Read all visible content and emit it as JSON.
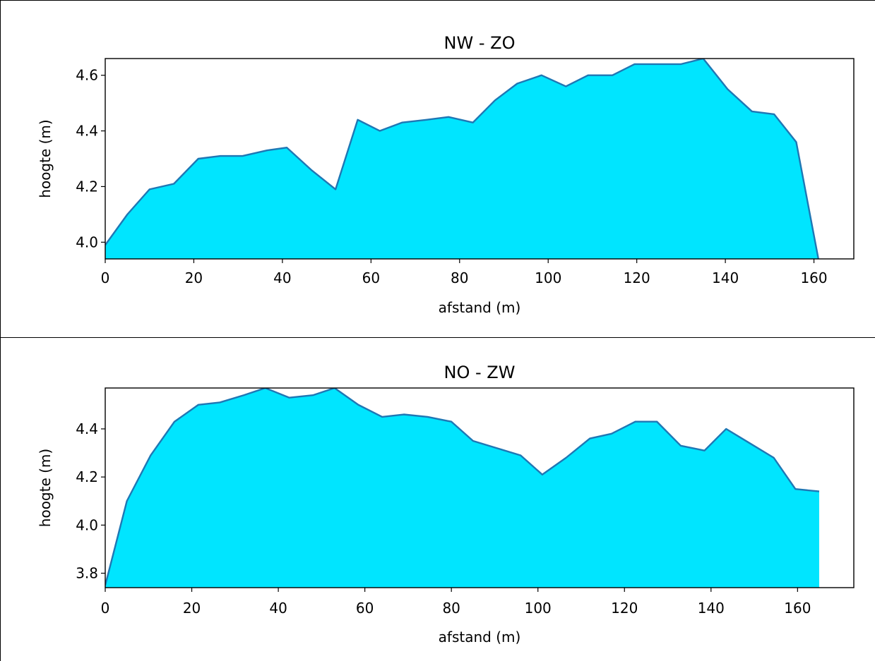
{
  "chart_data": [
    {
      "type": "area",
      "title": "NW - ZO",
      "xlabel": "afstand (m)",
      "ylabel": "hoogte (m)",
      "xlim": [
        0,
        169
      ],
      "ylim": [
        3.94,
        4.66
      ],
      "xticks": [
        0,
        20,
        40,
        60,
        80,
        100,
        120,
        140,
        160
      ],
      "yticks": [
        4.0,
        4.2,
        4.4,
        4.6
      ],
      "xtick_labels": [
        "0",
        "20",
        "40",
        "60",
        "80",
        "100",
        "120",
        "140",
        "160"
      ],
      "ytick_labels": [
        "4.0",
        "4.2",
        "4.4",
        "4.6"
      ],
      "fill_color": "#00e5ff",
      "line_color": "#1f77b4",
      "x": [
        0,
        5,
        10,
        15.5,
        21,
        26,
        31,
        36.5,
        41,
        46.5,
        52,
        57,
        62,
        67,
        72.5,
        77.5,
        83,
        88,
        93,
        98.5,
        104,
        109,
        114.5,
        119.5,
        125,
        130,
        135,
        140.5,
        146,
        151,
        156,
        161
      ],
      "y": [
        3.99,
        4.1,
        4.19,
        4.21,
        4.3,
        4.31,
        4.31,
        4.33,
        4.34,
        4.26,
        4.19,
        4.44,
        4.4,
        4.43,
        4.44,
        4.45,
        4.43,
        4.51,
        4.57,
        4.6,
        4.56,
        4.6,
        4.6,
        4.64,
        4.64,
        4.64,
        4.66,
        4.55,
        4.47,
        4.46,
        4.36,
        3.94
      ]
    },
    {
      "type": "area",
      "title": "NO - ZW",
      "xlabel": "afstand (m)",
      "ylabel": "hoogte (m)",
      "xlim": [
        0,
        173
      ],
      "ylim": [
        3.74,
        4.57
      ],
      "xticks": [
        0,
        20,
        40,
        60,
        80,
        100,
        120,
        140,
        160
      ],
      "yticks": [
        3.8,
        4.0,
        4.2,
        4.4
      ],
      "xtick_labels": [
        "0",
        "20",
        "40",
        "60",
        "80",
        "100",
        "120",
        "140",
        "160"
      ],
      "ytick_labels": [
        "3.8",
        "4.0",
        "4.2",
        "4.4"
      ],
      "fill_color": "#00e5ff",
      "line_color": "#1f77b4",
      "x": [
        0,
        5,
        10.5,
        16,
        21.5,
        26.5,
        32,
        37,
        42.5,
        48,
        53,
        58.5,
        64,
        69,
        74.5,
        80,
        85,
        90.5,
        96,
        101,
        106.5,
        112,
        117,
        122.5,
        127.5,
        133,
        138.5,
        143.5,
        149,
        154.5,
        159.5,
        165
      ],
      "y": [
        3.75,
        4.1,
        4.29,
        4.43,
        4.5,
        4.51,
        4.54,
        4.57,
        4.53,
        4.54,
        4.57,
        4.5,
        4.45,
        4.46,
        4.45,
        4.43,
        4.35,
        4.32,
        4.29,
        4.21,
        4.28,
        4.36,
        4.38,
        4.43,
        4.43,
        4.33,
        4.31,
        4.4,
        4.34,
        4.28,
        4.15,
        4.14
      ]
    }
  ]
}
